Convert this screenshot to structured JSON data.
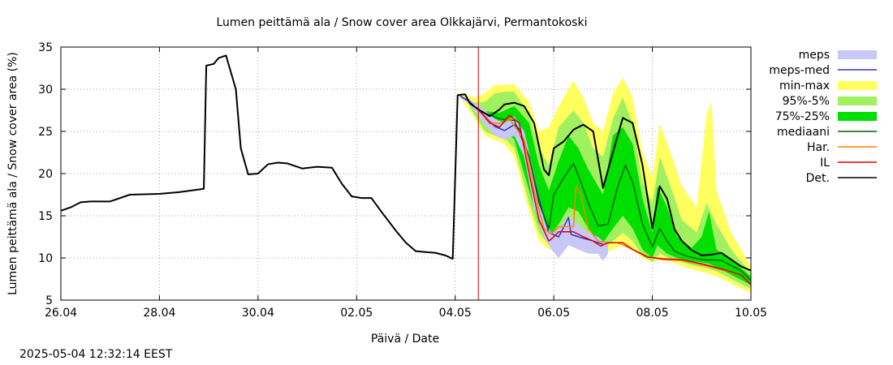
{
  "chart_data": {
    "type": "line",
    "title": "Lumen peittämä ala / Snow cover area Olkkajärvi, Permantokoski",
    "xlabel": "Päivä / Date",
    "ylabel": "Lumen peittämä ala / Snow cover area (%)",
    "ylim": [
      5,
      35
    ],
    "xlim_days": [
      0,
      14
    ],
    "grid": true,
    "legend_position": "right",
    "x_ticks": [
      {
        "day": 0,
        "label": "26.04"
      },
      {
        "day": 2,
        "label": "28.04"
      },
      {
        "day": 4,
        "label": "30.04"
      },
      {
        "day": 6,
        "label": "02.05"
      },
      {
        "day": 8,
        "label": "04.05"
      },
      {
        "day": 10,
        "label": "06.05"
      },
      {
        "day": 12,
        "label": "08.05"
      },
      {
        "day": 14,
        "label": "10.05"
      }
    ],
    "y_ticks": [
      5,
      10,
      15,
      20,
      25,
      30,
      35
    ],
    "forecast_start_day": 8.47,
    "legend": [
      {
        "key": "meps",
        "label": "meps",
        "color": "#c8c8f8",
        "kind": "band"
      },
      {
        "key": "meps_med",
        "label": "meps-med",
        "color": "#3232c8",
        "kind": "line"
      },
      {
        "key": "minmax",
        "label": "min-max",
        "color": "#ffff60",
        "kind": "band"
      },
      {
        "key": "p95_5",
        "label": "95%-5%",
        "color": "#a0f060",
        "kind": "band"
      },
      {
        "key": "p75_25",
        "label": "75%-25%",
        "color": "#00e000",
        "kind": "band"
      },
      {
        "key": "median",
        "label": "mediaani",
        "color": "#006400",
        "kind": "line"
      },
      {
        "key": "har",
        "label": "Har.",
        "color": "#ff8000",
        "kind": "line"
      },
      {
        "key": "il",
        "label": "IL",
        "color": "#e00000",
        "kind": "line"
      },
      {
        "key": "det",
        "label": "Det.",
        "color": "#000000",
        "kind": "line"
      }
    ],
    "series": {
      "det": [
        [
          0,
          15.6
        ],
        [
          0.2,
          16
        ],
        [
          0.4,
          16.6
        ],
        [
          0.6,
          16.7
        ],
        [
          1.0,
          16.7
        ],
        [
          1.4,
          17.5
        ],
        [
          2.0,
          17.6
        ],
        [
          2.4,
          17.8
        ],
        [
          2.9,
          18.2
        ],
        [
          2.95,
          32.8
        ],
        [
          3.1,
          33.0
        ],
        [
          3.2,
          33.7
        ],
        [
          3.35,
          34.0
        ],
        [
          3.55,
          30.0
        ],
        [
          3.65,
          23.0
        ],
        [
          3.8,
          19.9
        ],
        [
          4.0,
          20.0
        ],
        [
          4.2,
          21.1
        ],
        [
          4.4,
          21.3
        ],
        [
          4.6,
          21.2
        ],
        [
          4.9,
          20.6
        ],
        [
          5.2,
          20.8
        ],
        [
          5.5,
          20.7
        ],
        [
          5.7,
          18.8
        ],
        [
          5.9,
          17.3
        ],
        [
          6.1,
          17.1
        ],
        [
          6.3,
          17.1
        ],
        [
          6.5,
          15.5
        ],
        [
          6.8,
          13.2
        ],
        [
          7.0,
          11.8
        ],
        [
          7.2,
          10.8
        ],
        [
          7.4,
          10.7
        ],
        [
          7.6,
          10.6
        ],
        [
          7.8,
          10.3
        ],
        [
          7.95,
          9.9
        ],
        [
          8.05,
          29.3
        ],
        [
          8.2,
          29.4
        ],
        [
          8.3,
          28.3
        ],
        [
          8.5,
          27.5
        ],
        [
          8.7,
          26.8
        ],
        [
          8.9,
          27.6
        ],
        [
          9.0,
          28.2
        ],
        [
          9.2,
          28.4
        ],
        [
          9.4,
          28.0
        ],
        [
          9.6,
          26.0
        ],
        [
          9.8,
          20.5
        ],
        [
          9.9,
          19.8
        ],
        [
          10.0,
          23.0
        ],
        [
          10.2,
          23.8
        ],
        [
          10.4,
          25.2
        ],
        [
          10.6,
          25.8
        ],
        [
          10.8,
          25.0
        ],
        [
          11.0,
          18.3
        ],
        [
          11.2,
          22.5
        ],
        [
          11.4,
          26.6
        ],
        [
          11.6,
          26.0
        ],
        [
          11.8,
          21.0
        ],
        [
          12.0,
          13.5
        ],
        [
          12.15,
          18.5
        ],
        [
          12.3,
          17.0
        ],
        [
          12.45,
          13.4
        ],
        [
          12.6,
          12.0
        ],
        [
          12.8,
          10.9
        ],
        [
          13.0,
          10.3
        ],
        [
          13.2,
          10.4
        ],
        [
          13.4,
          10.6
        ],
        [
          13.6,
          9.8
        ],
        [
          13.8,
          9.0
        ],
        [
          14.0,
          8.5
        ]
      ],
      "median": [
        [
          8.5,
          27.4
        ],
        [
          8.9,
          26.5
        ],
        [
          9.2,
          26.3
        ],
        [
          9.5,
          22.0
        ],
        [
          9.7,
          16.5
        ],
        [
          9.9,
          13.5
        ],
        [
          10.0,
          17.5
        ],
        [
          10.2,
          19.5
        ],
        [
          10.4,
          21.2
        ],
        [
          10.55,
          19.0
        ],
        [
          10.7,
          16.5
        ],
        [
          10.9,
          13.8
        ],
        [
          11.1,
          14.0
        ],
        [
          11.3,
          18.5
        ],
        [
          11.45,
          21.0
        ],
        [
          11.6,
          19.0
        ],
        [
          11.8,
          14.0
        ],
        [
          12.0,
          11.3
        ],
        [
          12.15,
          13.5
        ],
        [
          12.3,
          12.0
        ],
        [
          12.45,
          10.8
        ],
        [
          12.7,
          10.2
        ],
        [
          13.0,
          9.8
        ],
        [
          13.4,
          9.7
        ],
        [
          13.8,
          8.5
        ],
        [
          14.0,
          7.3
        ]
      ],
      "har": [
        [
          8.5,
          27.4
        ],
        [
          8.7,
          26.1
        ],
        [
          8.9,
          25.9
        ],
        [
          9.1,
          26.5
        ],
        [
          9.4,
          24.0
        ],
        [
          9.6,
          18.0
        ],
        [
          9.8,
          13.5
        ],
        [
          9.95,
          12.8
        ],
        [
          10.1,
          13.7
        ],
        [
          10.4,
          13.7
        ],
        [
          10.45,
          18.5
        ],
        [
          10.55,
          17.5
        ],
        [
          10.7,
          13.5
        ],
        [
          10.9,
          12.0
        ],
        [
          11.1,
          11.8
        ],
        [
          11.3,
          11.8
        ],
        [
          11.6,
          11.0
        ],
        [
          11.9,
          10.2
        ],
        [
          12.2,
          9.8
        ],
        [
          12.6,
          9.7
        ],
        [
          13.0,
          9.2
        ],
        [
          13.4,
          8.6
        ],
        [
          13.8,
          8.0
        ],
        [
          14.0,
          6.8
        ]
      ],
      "il": [
        [
          8.5,
          27.4
        ],
        [
          8.7,
          26.0
        ],
        [
          8.9,
          25.5
        ],
        [
          9.1,
          26.9
        ],
        [
          9.3,
          26.0
        ],
        [
          9.5,
          20.0
        ],
        [
          9.7,
          14.5
        ],
        [
          9.9,
          12.0
        ],
        [
          10.0,
          12.5
        ],
        [
          10.1,
          13.1
        ],
        [
          10.4,
          13.1
        ],
        [
          10.6,
          12.5
        ],
        [
          10.8,
          12.0
        ],
        [
          10.95,
          11.4
        ],
        [
          11.1,
          11.8
        ],
        [
          11.4,
          11.8
        ],
        [
          11.6,
          11.0
        ],
        [
          11.9,
          10.1
        ],
        [
          12.2,
          9.9
        ],
        [
          12.6,
          9.8
        ],
        [
          13.0,
          9.3
        ],
        [
          13.4,
          8.7
        ],
        [
          13.8,
          8.0
        ],
        [
          14.0,
          6.8
        ]
      ],
      "p75_25": [
        [
          8.5,
          27.5,
          27.3
        ],
        [
          8.9,
          27.2,
          25.8
        ],
        [
          9.2,
          28.0,
          24.0
        ],
        [
          9.5,
          26.0,
          18.0
        ],
        [
          9.7,
          21.0,
          14.0
        ],
        [
          9.9,
          18.0,
          12.5
        ],
        [
          10.1,
          21.5,
          14.0
        ],
        [
          10.3,
          24.5,
          16.0
        ],
        [
          10.5,
          23.0,
          15.5
        ],
        [
          10.7,
          20.5,
          13.5
        ],
        [
          10.9,
          18.5,
          12.0
        ],
        [
          11.0,
          17.5,
          11.8
        ],
        [
          11.2,
          24.5,
          13.5
        ],
        [
          11.4,
          25.5,
          15.0
        ],
        [
          11.6,
          23.5,
          13.5
        ],
        [
          11.8,
          17.0,
          11.0
        ],
        [
          12.0,
          13.0,
          10.0
        ],
        [
          12.1,
          18.5,
          11.5
        ],
        [
          12.3,
          16.0,
          10.5
        ],
        [
          12.5,
          12.5,
          10.0
        ],
        [
          12.8,
          11.2,
          9.6
        ],
        [
          13.0,
          12.5,
          9.5
        ],
        [
          13.15,
          15.5,
          9.3
        ],
        [
          13.3,
          11.0,
          8.9
        ],
        [
          13.6,
          9.8,
          8.0
        ],
        [
          14.0,
          7.8,
          6.8
        ]
      ],
      "p95_5": [
        [
          8.3,
          28.4,
          27.8
        ],
        [
          8.6,
          28.5,
          25.0
        ],
        [
          8.8,
          29.5,
          24.5
        ],
        [
          9.0,
          29.7,
          24.2
        ],
        [
          9.2,
          29.7,
          23.0
        ],
        [
          9.5,
          27.0,
          16.5
        ],
        [
          9.7,
          23.0,
          13.0
        ],
        [
          9.9,
          21.0,
          11.5
        ],
        [
          10.1,
          25.5,
          12.5
        ],
        [
          10.4,
          27.5,
          14.0
        ],
        [
          10.6,
          26.0,
          13.0
        ],
        [
          10.8,
          23.0,
          11.5
        ],
        [
          11.0,
          22.0,
          11.0
        ],
        [
          11.2,
          26.5,
          12.0
        ],
        [
          11.4,
          29.0,
          13.0
        ],
        [
          11.6,
          26.0,
          12.0
        ],
        [
          11.8,
          19.0,
          10.2
        ],
        [
          12.0,
          16.5,
          9.5
        ],
        [
          12.15,
          22.0,
          10.5
        ],
        [
          12.4,
          18.0,
          9.8
        ],
        [
          12.6,
          14.5,
          9.5
        ],
        [
          12.9,
          13.0,
          9.0
        ],
        [
          13.1,
          16.5,
          8.8
        ],
        [
          13.3,
          14.0,
          8.4
        ],
        [
          13.6,
          11.0,
          7.5
        ],
        [
          14.0,
          8.2,
          6.3
        ]
      ],
      "minmax": [
        [
          8.1,
          29.6,
          29.0
        ],
        [
          8.4,
          29.0,
          26.5
        ],
        [
          8.6,
          29.5,
          24.5
        ],
        [
          8.8,
          30.5,
          24.0
        ],
        [
          9.0,
          30.5,
          23.5
        ],
        [
          9.2,
          30.6,
          22.0
        ],
        [
          9.5,
          28.5,
          15.5
        ],
        [
          9.7,
          25.0,
          12.0
        ],
        [
          9.9,
          25.5,
          11.0
        ],
        [
          10.1,
          28.0,
          11.0
        ],
        [
          10.4,
          31.0,
          12.0
        ],
        [
          10.6,
          29.0,
          11.0
        ],
        [
          10.8,
          26.0,
          10.5
        ],
        [
          11.0,
          25.0,
          10.5
        ],
        [
          11.2,
          29.5,
          11.0
        ],
        [
          11.4,
          31.4,
          11.5
        ],
        [
          11.6,
          29.0,
          11.0
        ],
        [
          11.8,
          22.5,
          10.0
        ],
        [
          12.0,
          19.5,
          9.5
        ],
        [
          12.15,
          26.0,
          9.8
        ],
        [
          12.4,
          22.0,
          9.5
        ],
        [
          12.6,
          18.5,
          9.0
        ],
        [
          12.9,
          16.0,
          8.5
        ],
        [
          13.1,
          27.0,
          8.2
        ],
        [
          13.2,
          28.5,
          8.0
        ],
        [
          13.3,
          18.0,
          7.8
        ],
        [
          13.6,
          13.0,
          7.0
        ],
        [
          14.0,
          9.0,
          5.8
        ]
      ],
      "meps": [
        [
          8.1,
          29.3,
          29.0
        ],
        [
          8.3,
          28.8,
          28.2
        ],
        [
          8.6,
          27.5,
          25.8
        ],
        [
          8.8,
          26.5,
          24.5
        ],
        [
          9.0,
          26.0,
          24.0
        ],
        [
          9.2,
          26.8,
          24.5
        ],
        [
          9.4,
          25.0,
          22.0
        ],
        [
          9.6,
          20.0,
          16.0
        ],
        [
          9.8,
          14.5,
          12.5
        ],
        [
          9.95,
          13.0,
          11.0
        ],
        [
          10.1,
          13.5,
          10.0
        ],
        [
          10.3,
          15.0,
          11.5
        ],
        [
          10.5,
          14.0,
          11.0
        ],
        [
          10.7,
          13.0,
          10.5
        ],
        [
          10.9,
          12.5,
          10.5
        ],
        [
          11.0,
          12.0,
          9.6
        ],
        [
          11.1,
          11.8,
          10.5
        ]
      ],
      "meps_med": [
        [
          8.1,
          29.2
        ],
        [
          8.3,
          28.5
        ],
        [
          8.6,
          26.8
        ],
        [
          8.8,
          25.6
        ],
        [
          9.0,
          25.1
        ],
        [
          9.2,
          25.8
        ],
        [
          9.3,
          25.3
        ],
        [
          9.5,
          22.0
        ],
        [
          9.7,
          17.0
        ],
        [
          9.9,
          13.0
        ],
        [
          10.1,
          12.5
        ],
        [
          10.3,
          14.8
        ],
        [
          10.35,
          12.8
        ],
        [
          10.5,
          12.5
        ],
        [
          10.8,
          12.0
        ],
        [
          11.0,
          11.6
        ]
      ]
    }
  },
  "timestamp": "2025-05-04 12:32:14 EEST"
}
